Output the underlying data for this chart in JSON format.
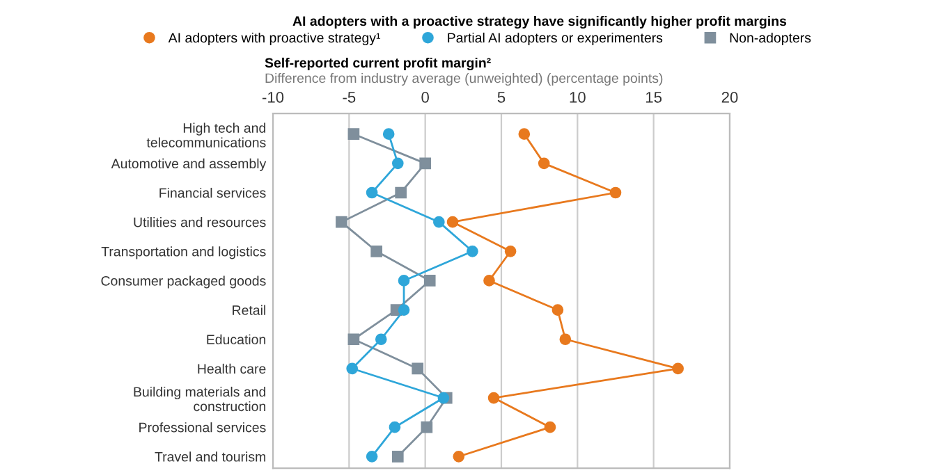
{
  "chart_data": {
    "type": "line",
    "orientation": "horizontal",
    "title": "AI adopters with a proactive strategy have significantly higher profit margins",
    "xlabel": "Self-reported current profit margin²",
    "subtitle": "Difference from industry average (unweighted) (percentage points)",
    "categories": [
      "High tech and\ntelecommunications",
      "Automotive and assembly",
      "Financial services",
      "Utilities and resources",
      "Transportation and logistics",
      "Consumer packaged goods",
      "Retail",
      "Education",
      "Health care",
      "Building materials and\nconstruction",
      "Professional services",
      "Travel and tourism"
    ],
    "series": [
      {
        "name": "AI adopters with proactive strategy¹",
        "color": "#e8791e",
        "marker": "circle",
        "values": [
          6.5,
          7.8,
          12.5,
          1.8,
          5.6,
          4.2,
          8.7,
          9.2,
          16.6,
          4.5,
          8.2,
          2.2
        ]
      },
      {
        "name": "Partial AI adopters or experimenters",
        "color": "#2ea6d9",
        "marker": "circle",
        "values": [
          -2.4,
          -1.8,
          -3.5,
          0.9,
          3.1,
          -1.4,
          -1.4,
          -2.9,
          -4.8,
          1.2,
          -2.0,
          -3.5
        ]
      },
      {
        "name": "Non-adopters",
        "color": "#7f8f9c",
        "marker": "square",
        "values": [
          -4.7,
          0,
          -1.6,
          -5.5,
          -3.2,
          0.3,
          -1.9,
          -4.7,
          -0.5,
          1.4,
          0.1,
          -1.8
        ]
      }
    ],
    "xlim": [
      -10,
      20
    ],
    "xticks": [
      -10,
      -5,
      0,
      5,
      10,
      15,
      20
    ],
    "grid": "x",
    "legend": "top",
    "line_style": "solid"
  }
}
